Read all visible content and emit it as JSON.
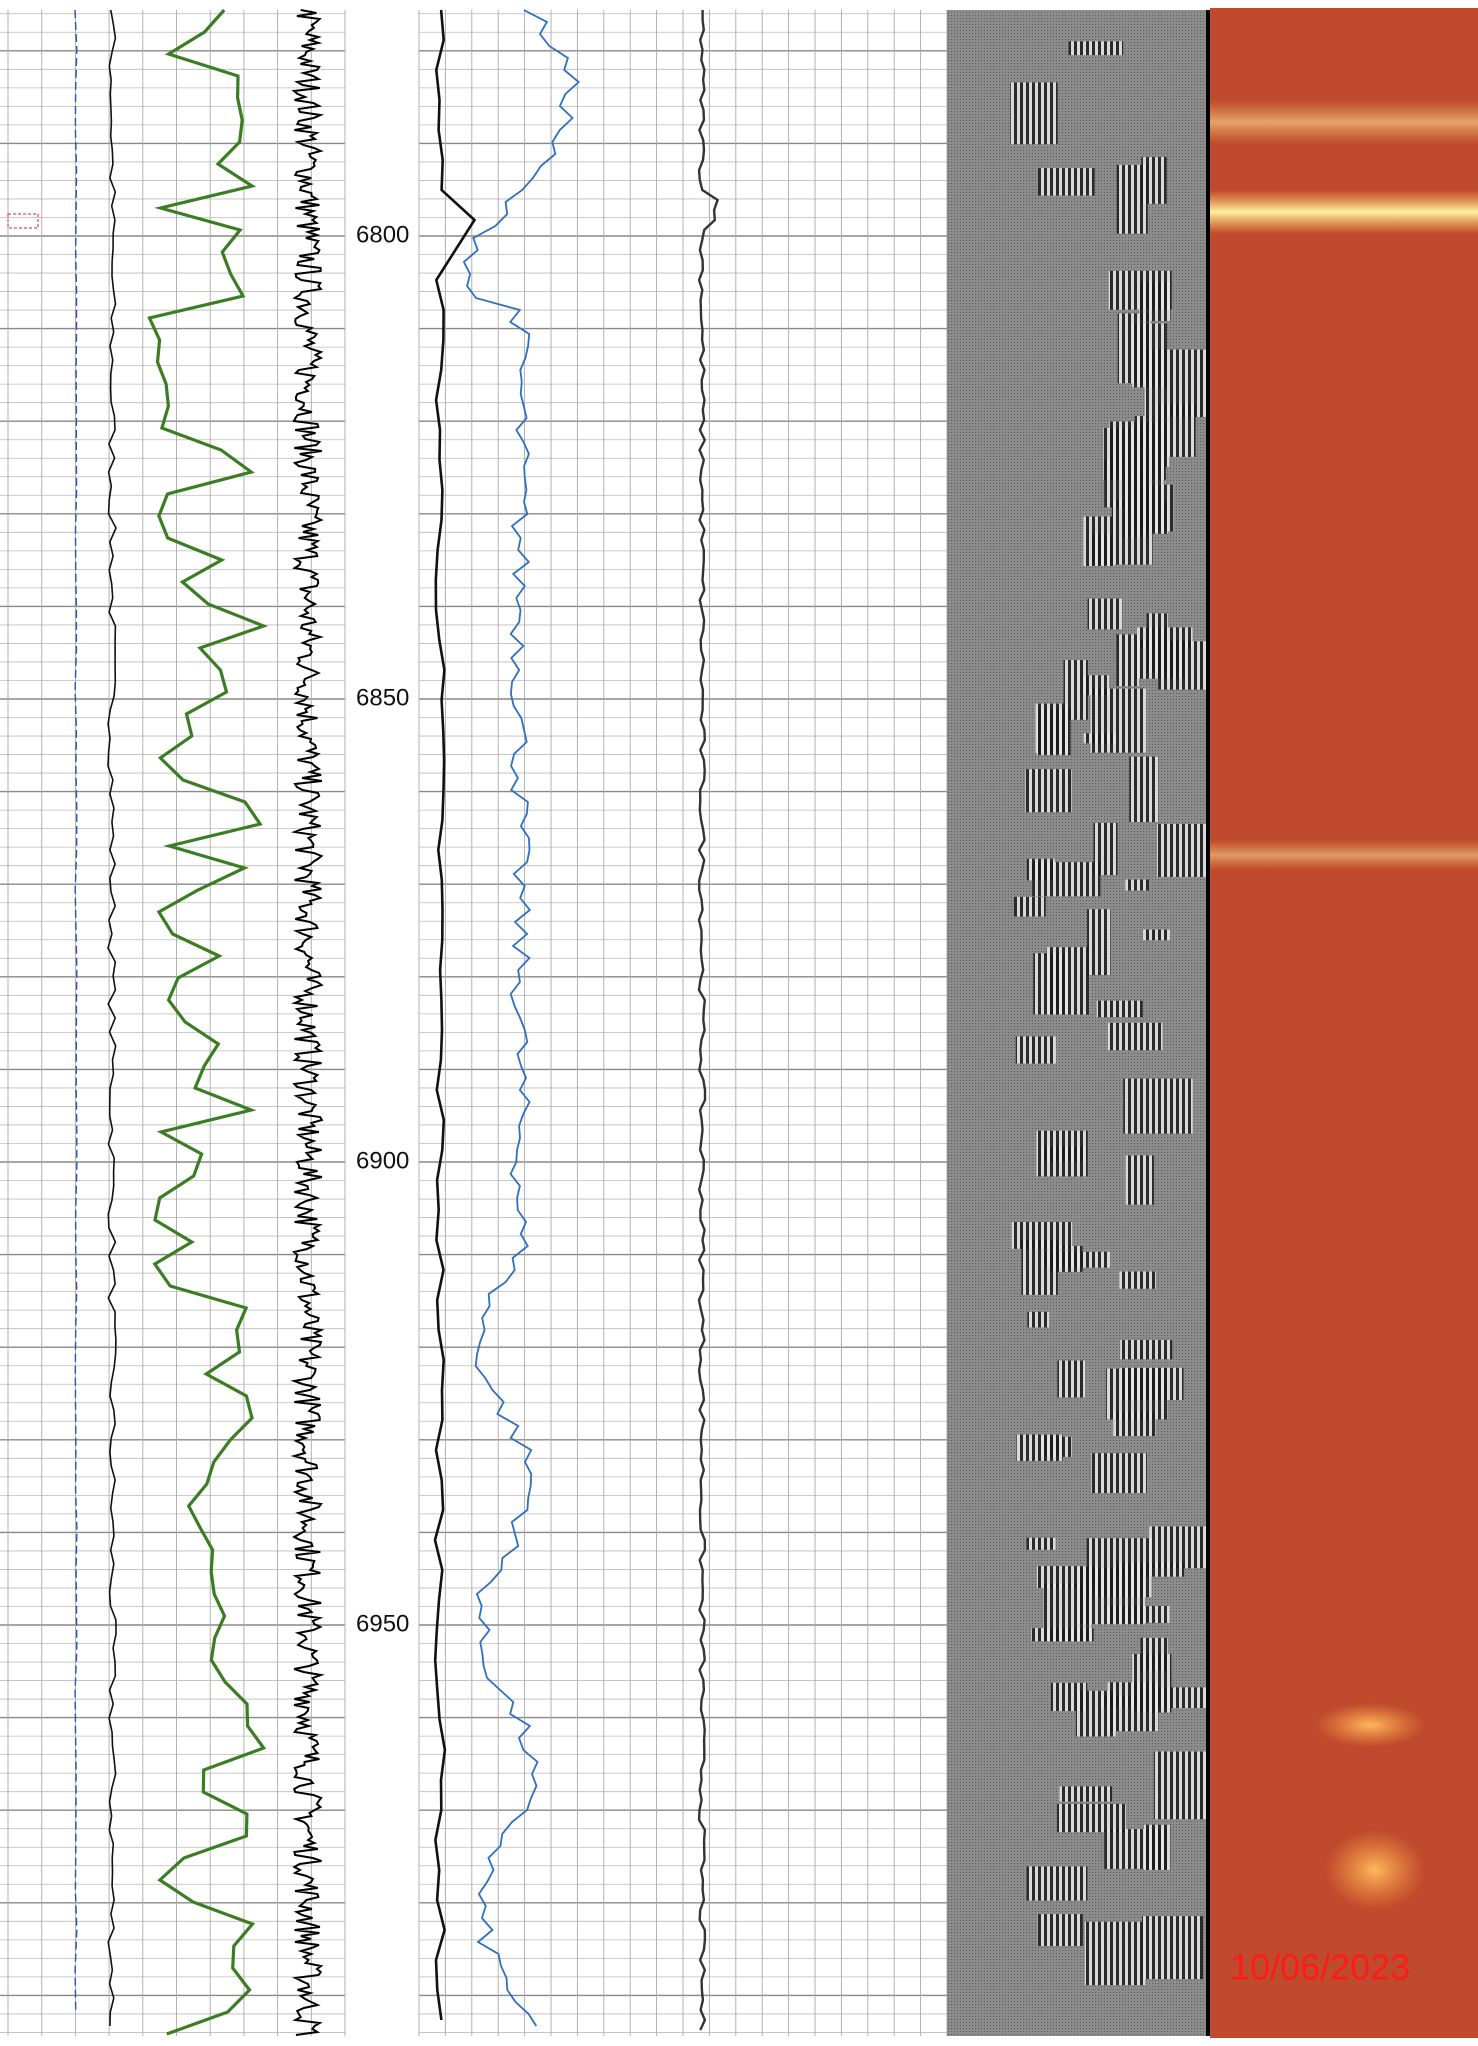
{
  "depth_labels": [
    "6800",
    "6850",
    "6900",
    "6950"
  ],
  "date_stamp": "10/06/2023"
}
